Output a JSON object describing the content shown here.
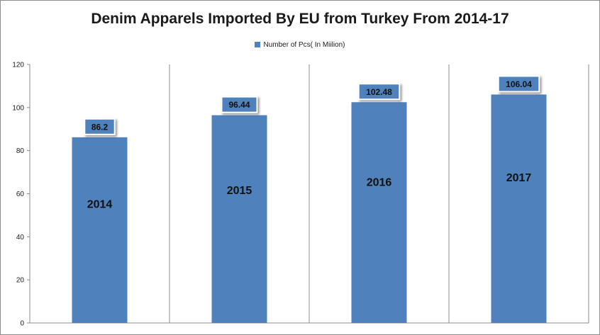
{
  "chart_data": {
    "type": "bar",
    "title": "Denim Apparels Imported By EU from Turkey From 2014-17",
    "categories": [
      "2014",
      "2015",
      "2016",
      "2017"
    ],
    "series": [
      {
        "name": "Number of Pcs( In Miilion)",
        "values": [
          86.2,
          96.44,
          102.48,
          106.04
        ]
      }
    ],
    "value_labels": [
      "86.2",
      "96.44",
      "102.48",
      "106.04"
    ],
    "ylim": [
      0,
      120
    ],
    "yticks": [
      0,
      20,
      40,
      60,
      80,
      100,
      120
    ],
    "legend_position": "top-center",
    "grid": "vertical category separators",
    "bar_color": "#4f81bd"
  }
}
